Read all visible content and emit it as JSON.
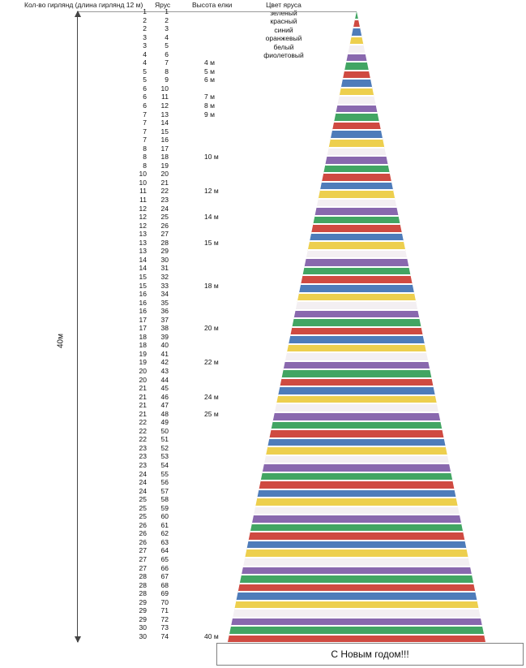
{
  "headers": {
    "garlands": "Кол-во гирлянд (длина гирлянд 12 м)",
    "tier": "Ярус",
    "height": "Высота елки",
    "color": "Цвет яруса"
  },
  "dimension": {
    "total_height": "40м"
  },
  "greeting": "С Новым годом!!!",
  "legend": [
    {
      "label": "зеленый",
      "hex": "#42a563"
    },
    {
      "label": "красный",
      "hex": "#cf4a41"
    },
    {
      "label": "синий",
      "hex": "#4e7cba"
    },
    {
      "label": "оранжевый",
      "hex": "#edcf4e"
    },
    {
      "label": "белый",
      "hex": "#f3eff2"
    },
    {
      "label": "фиолетовый",
      "hex": "#8968ae"
    }
  ],
  "tiers": [
    {
      "garlands": 1,
      "tier": 1,
      "height": ""
    },
    {
      "garlands": 2,
      "tier": 2,
      "height": ""
    },
    {
      "garlands": 2,
      "tier": 3,
      "height": ""
    },
    {
      "garlands": 3,
      "tier": 4,
      "height": ""
    },
    {
      "garlands": 3,
      "tier": 5,
      "height": ""
    },
    {
      "garlands": 4,
      "tier": 6,
      "height": ""
    },
    {
      "garlands": 4,
      "tier": 7,
      "height": "4 м"
    },
    {
      "garlands": 5,
      "tier": 8,
      "height": "5 м"
    },
    {
      "garlands": 5,
      "tier": 9,
      "height": "6 м"
    },
    {
      "garlands": 6,
      "tier": 10,
      "height": ""
    },
    {
      "garlands": 6,
      "tier": 11,
      "height": "7 м"
    },
    {
      "garlands": 6,
      "tier": 12,
      "height": "8 м"
    },
    {
      "garlands": 7,
      "tier": 13,
      "height": "9 м"
    },
    {
      "garlands": 7,
      "tier": 14,
      "height": ""
    },
    {
      "garlands": 7,
      "tier": 15,
      "height": ""
    },
    {
      "garlands": 7,
      "tier": 16,
      "height": ""
    },
    {
      "garlands": 8,
      "tier": 17,
      "height": ""
    },
    {
      "garlands": 8,
      "tier": 18,
      "height": "10 м"
    },
    {
      "garlands": 8,
      "tier": 19,
      "height": ""
    },
    {
      "garlands": 10,
      "tier": 20,
      "height": ""
    },
    {
      "garlands": 10,
      "tier": 21,
      "height": ""
    },
    {
      "garlands": 11,
      "tier": 22,
      "height": "12 м"
    },
    {
      "garlands": 11,
      "tier": 23,
      "height": ""
    },
    {
      "garlands": 12,
      "tier": 24,
      "height": ""
    },
    {
      "garlands": 12,
      "tier": 25,
      "height": "14 м"
    },
    {
      "garlands": 12,
      "tier": 26,
      "height": ""
    },
    {
      "garlands": 13,
      "tier": 27,
      "height": ""
    },
    {
      "garlands": 13,
      "tier": 28,
      "height": "15 м"
    },
    {
      "garlands": 13,
      "tier": 29,
      "height": ""
    },
    {
      "garlands": 14,
      "tier": 30,
      "height": ""
    },
    {
      "garlands": 14,
      "tier": 31,
      "height": ""
    },
    {
      "garlands": 15,
      "tier": 32,
      "height": ""
    },
    {
      "garlands": 15,
      "tier": 33,
      "height": "18 м"
    },
    {
      "garlands": 16,
      "tier": 34,
      "height": ""
    },
    {
      "garlands": 16,
      "tier": 35,
      "height": ""
    },
    {
      "garlands": 16,
      "tier": 36,
      "height": ""
    },
    {
      "garlands": 17,
      "tier": 37,
      "height": ""
    },
    {
      "garlands": 17,
      "tier": 38,
      "height": "20 м"
    },
    {
      "garlands": 18,
      "tier": 39,
      "height": ""
    },
    {
      "garlands": 18,
      "tier": 40,
      "height": ""
    },
    {
      "garlands": 19,
      "tier": 41,
      "height": ""
    },
    {
      "garlands": 19,
      "tier": 42,
      "height": "22 м"
    },
    {
      "garlands": 20,
      "tier": 43,
      "height": ""
    },
    {
      "garlands": 20,
      "tier": 44,
      "height": ""
    },
    {
      "garlands": 21,
      "tier": 45,
      "height": ""
    },
    {
      "garlands": 21,
      "tier": 46,
      "height": "24 м"
    },
    {
      "garlands": 21,
      "tier": 47,
      "height": ""
    },
    {
      "garlands": 21,
      "tier": 48,
      "height": "25 м"
    },
    {
      "garlands": 22,
      "tier": 49,
      "height": ""
    },
    {
      "garlands": 22,
      "tier": 50,
      "height": ""
    },
    {
      "garlands": 22,
      "tier": 51,
      "height": ""
    },
    {
      "garlands": 23,
      "tier": 52,
      "height": ""
    },
    {
      "garlands": 23,
      "tier": 53,
      "height": ""
    },
    {
      "garlands": 23,
      "tier": 54,
      "height": ""
    },
    {
      "garlands": 24,
      "tier": 55,
      "height": ""
    },
    {
      "garlands": 24,
      "tier": 56,
      "height": ""
    },
    {
      "garlands": 24,
      "tier": 57,
      "height": ""
    },
    {
      "garlands": 25,
      "tier": 58,
      "height": ""
    },
    {
      "garlands": 25,
      "tier": 59,
      "height": ""
    },
    {
      "garlands": 25,
      "tier": 60,
      "height": ""
    },
    {
      "garlands": 26,
      "tier": 61,
      "height": ""
    },
    {
      "garlands": 26,
      "tier": 62,
      "height": ""
    },
    {
      "garlands": 26,
      "tier": 63,
      "height": ""
    },
    {
      "garlands": 27,
      "tier": 64,
      "height": ""
    },
    {
      "garlands": 27,
      "tier": 65,
      "height": ""
    },
    {
      "garlands": 27,
      "tier": 66,
      "height": ""
    },
    {
      "garlands": 28,
      "tier": 67,
      "height": ""
    },
    {
      "garlands": 28,
      "tier": 68,
      "height": ""
    },
    {
      "garlands": 28,
      "tier": 69,
      "height": ""
    },
    {
      "garlands": 29,
      "tier": 70,
      "height": ""
    },
    {
      "garlands": 29,
      "tier": 71,
      "height": ""
    },
    {
      "garlands": 29,
      "tier": 72,
      "height": ""
    },
    {
      "garlands": 30,
      "tier": 73,
      "height": ""
    },
    {
      "garlands": 30,
      "tier": 74,
      "height": "40 м"
    }
  ]
}
